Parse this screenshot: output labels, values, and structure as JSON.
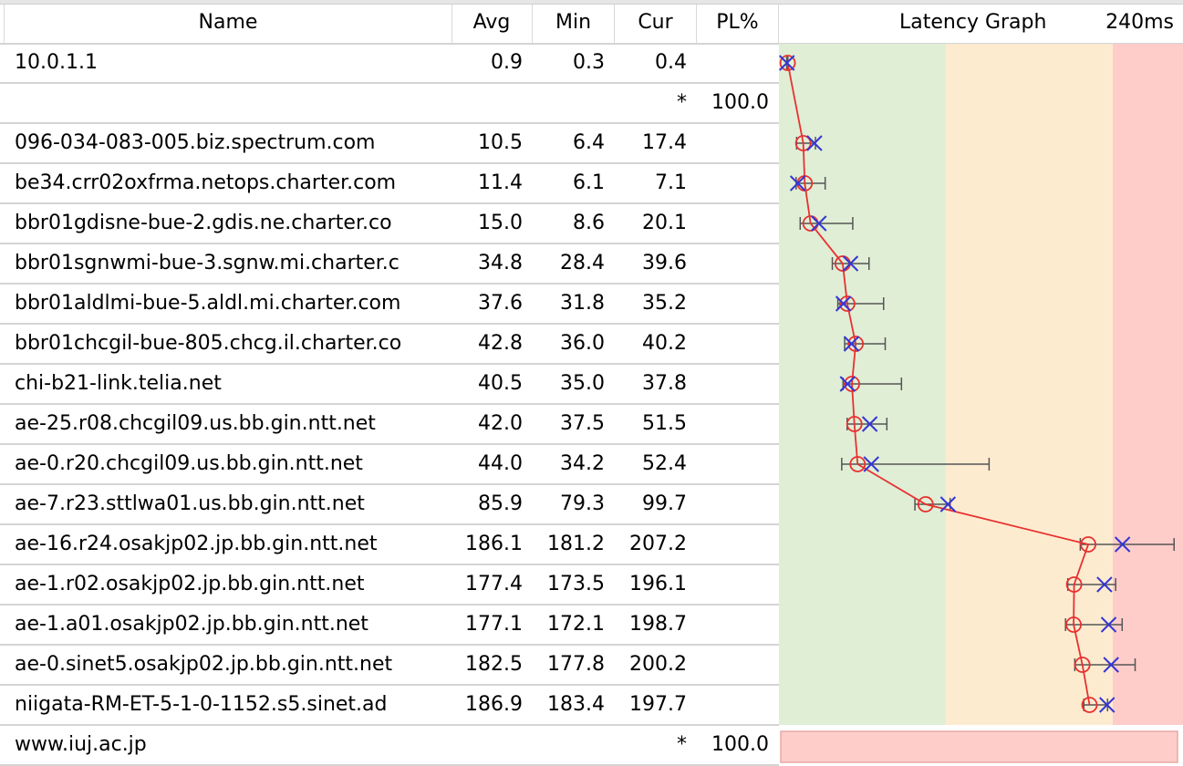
{
  "columns": {
    "name": "Name",
    "avg": "Avg",
    "min": "Min",
    "cur": "Cur",
    "pl": "PL%",
    "graph_title": "Latency Graph",
    "graph_scale": "240ms"
  },
  "graph_max_ms": 240,
  "zones": {
    "green_until_ms": 100,
    "orange_until_ms": 200,
    "colors": {
      "green": "#e0eed6",
      "orange": "#fdebd0",
      "red": "#fecdca",
      "line": "#e8312f",
      "cur_marker": "#3535d4",
      "range": "#555555"
    }
  },
  "hops": [
    {
      "name": "10.0.1.1",
      "avg": "0.9",
      "min": "0.3",
      "cur": "0.4",
      "max": 1.0
    },
    {
      "name": "",
      "star": "*",
      "pl": "100.0",
      "lost": true
    },
    {
      "name": "096-034-083-005.biz.spectrum.com",
      "avg": "10.5",
      "min": "6.4",
      "cur": "17.4",
      "max": 18.0
    },
    {
      "name": "be34.crr02oxfrma.netops.charter.com",
      "avg": "11.4",
      "min": "6.1",
      "cur": "7.1",
      "max": 24.0
    },
    {
      "name": "bbr01gdisne-bue-2.gdis.ne.charter.co",
      "avg": "15.0",
      "min": "8.6",
      "cur": "20.1",
      "max": 41.0
    },
    {
      "name": "bbr01sgnwmi-bue-3.sgnw.mi.charter.c",
      "avg": "34.8",
      "min": "28.4",
      "cur": "39.6",
      "max": 51.0
    },
    {
      "name": "bbr01aldlmi-bue-5.aldl.mi.charter.com",
      "avg": "37.6",
      "min": "31.8",
      "cur": "35.2",
      "max": 60.0
    },
    {
      "name": "bbr01chcgil-bue-805.chcg.il.charter.co",
      "avg": "42.8",
      "min": "36.0",
      "cur": "40.2",
      "max": 61.0
    },
    {
      "name": "chi-b21-link.telia.net",
      "avg": "40.5",
      "min": "35.0",
      "cur": "37.8",
      "max": 71.0
    },
    {
      "name": "ae-25.r08.chcgil09.us.bb.gin.ntt.net",
      "avg": "42.0",
      "min": "37.5",
      "cur": "51.5",
      "max": 62.0
    },
    {
      "name": "ae-0.r20.chcgil09.us.bb.gin.ntt.net",
      "avg": "44.0",
      "min": "34.2",
      "cur": "52.4",
      "max": 125.0
    },
    {
      "name": "ae-7.r23.sttlwa01.us.bb.gin.ntt.net",
      "avg": "85.9",
      "min": "79.3",
      "cur": "99.7",
      "max": 101.0
    },
    {
      "name": "ae-16.r24.osakjp02.jp.bb.gin.ntt.net",
      "avg": "186.1",
      "min": "181.2",
      "cur": "207.2",
      "max": 239.0
    },
    {
      "name": "ae-1.r02.osakjp02.jp.bb.gin.ntt.net",
      "avg": "177.4",
      "min": "173.5",
      "cur": "196.1",
      "max": 203.0
    },
    {
      "name": "ae-1.a01.osakjp02.jp.bb.gin.ntt.net",
      "avg": "177.1",
      "min": "172.1",
      "cur": "198.7",
      "max": 207.0
    },
    {
      "name": "ae-0.sinet5.osakjp02.jp.bb.gin.ntt.net",
      "avg": "182.5",
      "min": "177.8",
      "cur": "200.2",
      "max": 215.0
    },
    {
      "name": "niigata-RM-ET-5-1-0-1152.s5.sinet.ad",
      "avg": "186.9",
      "min": "183.4",
      "cur": "197.7",
      "max": 198.0
    },
    {
      "name": "www.iuj.ac.jp",
      "star": "*",
      "pl": "100.0",
      "lost": true
    }
  ]
}
